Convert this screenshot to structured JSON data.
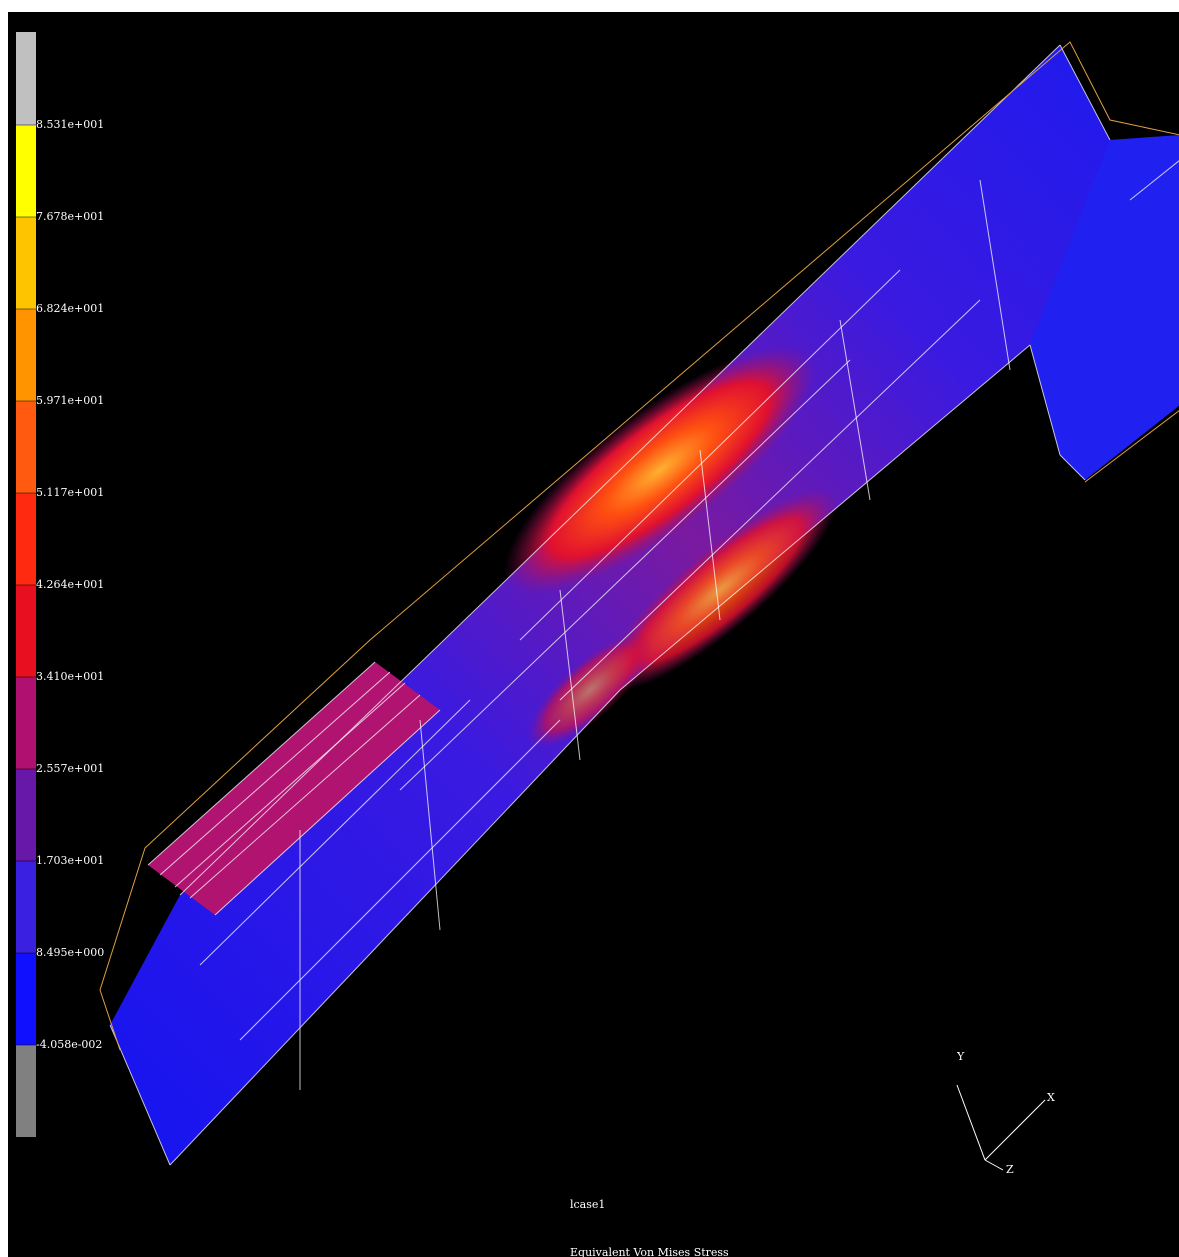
{
  "legend": {
    "labels": [
      "8.531e+001",
      "7.678e+001",
      "6.824e+001",
      "5.971e+001",
      "5.117e+001",
      "4.264e+001",
      "3.410e+001",
      "2.557e+001",
      "1.703e+001",
      "8.495e+000",
      "-4.058e-002"
    ]
  },
  "footer": {
    "case": "lcase1",
    "result": "Equivalent Von Mises Stress"
  },
  "triad": {
    "x": "X",
    "y": "Y",
    "z": "Z"
  }
}
